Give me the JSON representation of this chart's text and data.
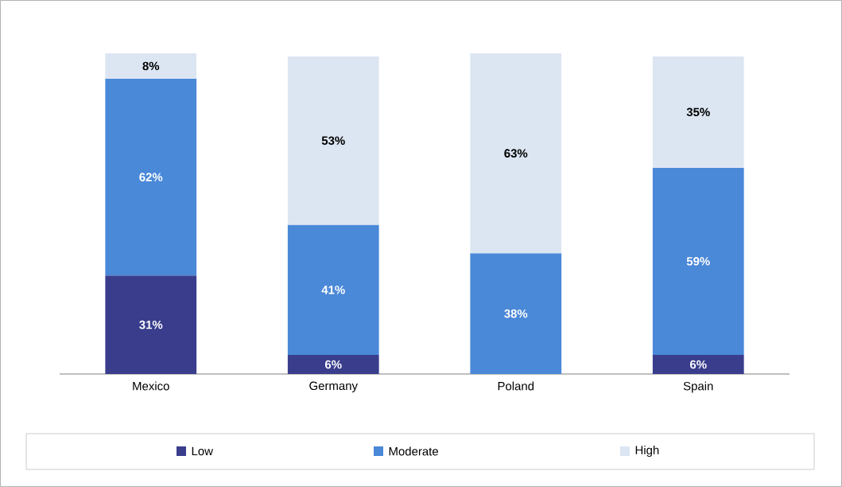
{
  "chart_data": {
    "type": "bar",
    "stacked": true,
    "categories": [
      "Mexico",
      "Germany",
      "Poland",
      "Spain"
    ],
    "series": [
      {
        "name": "Low",
        "color": "#393d8c",
        "values": [
          31,
          6,
          null,
          6
        ],
        "value_labels": [
          "31%",
          "6%",
          null,
          "6%"
        ]
      },
      {
        "name": "Moderate",
        "color": "#4a88d8",
        "values": [
          62,
          41,
          38,
          59
        ],
        "value_labels": [
          "62%",
          "41%",
          "38%",
          "59%"
        ]
      },
      {
        "name": "High",
        "color": "#dce6f2",
        "values": [
          8,
          53,
          63,
          35
        ],
        "value_labels": [
          "8%",
          "53%",
          "63%",
          "35%"
        ]
      }
    ],
    "legend": "bottom"
  }
}
